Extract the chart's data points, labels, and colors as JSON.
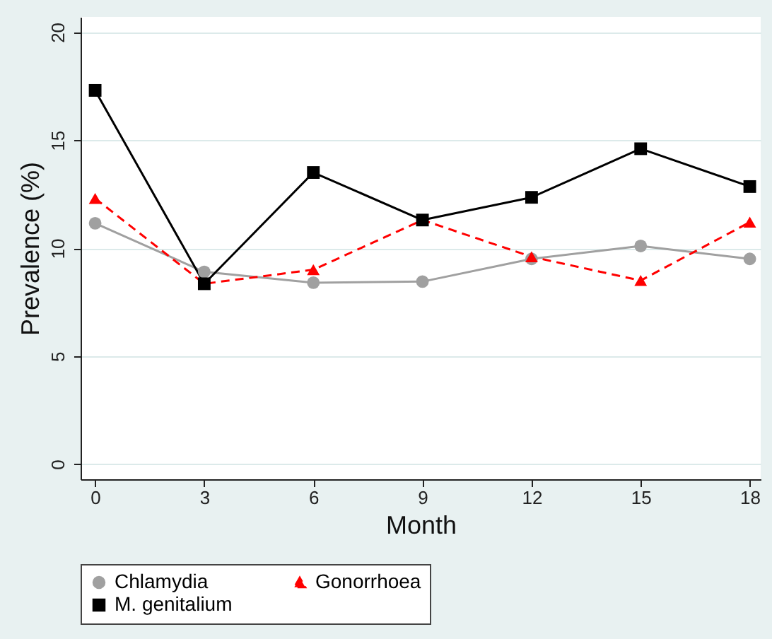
{
  "chart_data": {
    "type": "line",
    "xlabel": "Month",
    "ylabel": "Prevalence (%)",
    "x": [
      0,
      3,
      6,
      9,
      12,
      15,
      18
    ],
    "series": [
      {
        "name": "Chlamydia",
        "color": "#a0a0a0",
        "marker": "circle",
        "line_style": "solid",
        "values": [
          11.15,
          8.9,
          8.4,
          8.45,
          9.5,
          10.1,
          9.5
        ]
      },
      {
        "name": "Gonorrhoea",
        "color": "#ff0000",
        "marker": "triangle",
        "line_style": "dashed",
        "values": [
          12.3,
          8.35,
          9.0,
          11.3,
          9.6,
          8.5,
          11.2
        ]
      },
      {
        "name": "M. genitalium",
        "color": "#000000",
        "marker": "square",
        "line_style": "solid",
        "values": [
          17.3,
          8.35,
          13.5,
          11.3,
          12.35,
          14.6,
          12.85
        ]
      }
    ],
    "xlim": [
      -0.4,
      18.3
    ],
    "ylim": [
      -0.7,
      20.7
    ],
    "xticks": [
      0,
      3,
      6,
      9,
      12,
      15,
      18
    ],
    "yticks": [
      0,
      5,
      10,
      15,
      20
    ],
    "grid": "y",
    "legend": "bottom"
  }
}
